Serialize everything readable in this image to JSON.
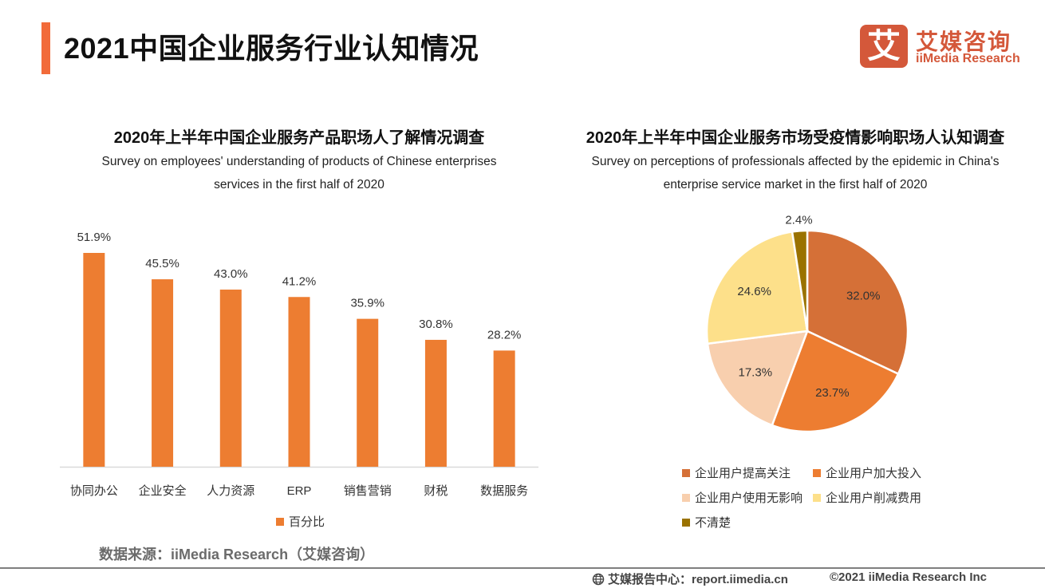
{
  "header": {
    "title": "2021中国企业服务行业认知情况",
    "accent_color": "#f26b3a"
  },
  "logo": {
    "mark": "艾",
    "cn": "艾媒咨询",
    "en": "iiMedia Research",
    "color": "#d4583a"
  },
  "chart_data": [
    {
      "type": "bar",
      "title": "2020年上半年中国企业服务产品职场人了解情况调查",
      "subtitle": "Survey on employees' understanding of products of Chinese enterprises services in the first half of 2020",
      "subtitle_lines": [
        "Survey on employees' understanding of products of Chinese enterprises",
        "services in the first half of 2020"
      ],
      "categories": [
        "协同办公",
        "企业安全",
        "人力资源",
        "ERP",
        "销售营销",
        "财税",
        "数据服务"
      ],
      "values": [
        51.9,
        45.5,
        43.0,
        41.2,
        35.9,
        30.8,
        28.2
      ],
      "labels": [
        "51.9%",
        "45.5%",
        "43.0%",
        "41.2%",
        "35.9%",
        "30.8%",
        "28.2%"
      ],
      "series_name": "百分比",
      "color": "#ed7d31",
      "xlabel": "",
      "ylabel": "",
      "ylim": [
        0,
        52
      ],
      "grid": false,
      "legend_position": "bottom"
    },
    {
      "type": "pie",
      "title": "2020年上半年中国企业服务市场受疫情影响职场人认知调查",
      "subtitle": "Survey on perceptions of professionals affected by the epidemic in China's enterprise service market in the first half of 2020",
      "subtitle_lines": [
        "Survey on perceptions of professionals affected by the epidemic in China's",
        "enterprise service market in the first half of 2020"
      ],
      "slices": [
        {
          "name": "企业用户提高关注",
          "value": 32.0,
          "label": "32.0%",
          "color": "#d57037"
        },
        {
          "name": "企业用户加大投入",
          "value": 23.7,
          "label": "23.7%",
          "color": "#ed7d31"
        },
        {
          "name": "企业用户使用无影响",
          "value": 17.3,
          "label": "17.3%",
          "color": "#f8cfae"
        },
        {
          "name": "企业用户削减费用",
          "value": 24.6,
          "label": "24.6%",
          "color": "#fde08a"
        },
        {
          "name": "不清楚",
          "value": 2.4,
          "label": "2.4%",
          "color": "#9a7200"
        }
      ],
      "legend_position": "bottom"
    }
  ],
  "source": "数据来源：iiMedia Research（艾媒咨询）",
  "footer": {
    "left": "艾媒报告中心：report.iimedia.cn",
    "right": "©2021  iiMedia Research  Inc"
  }
}
